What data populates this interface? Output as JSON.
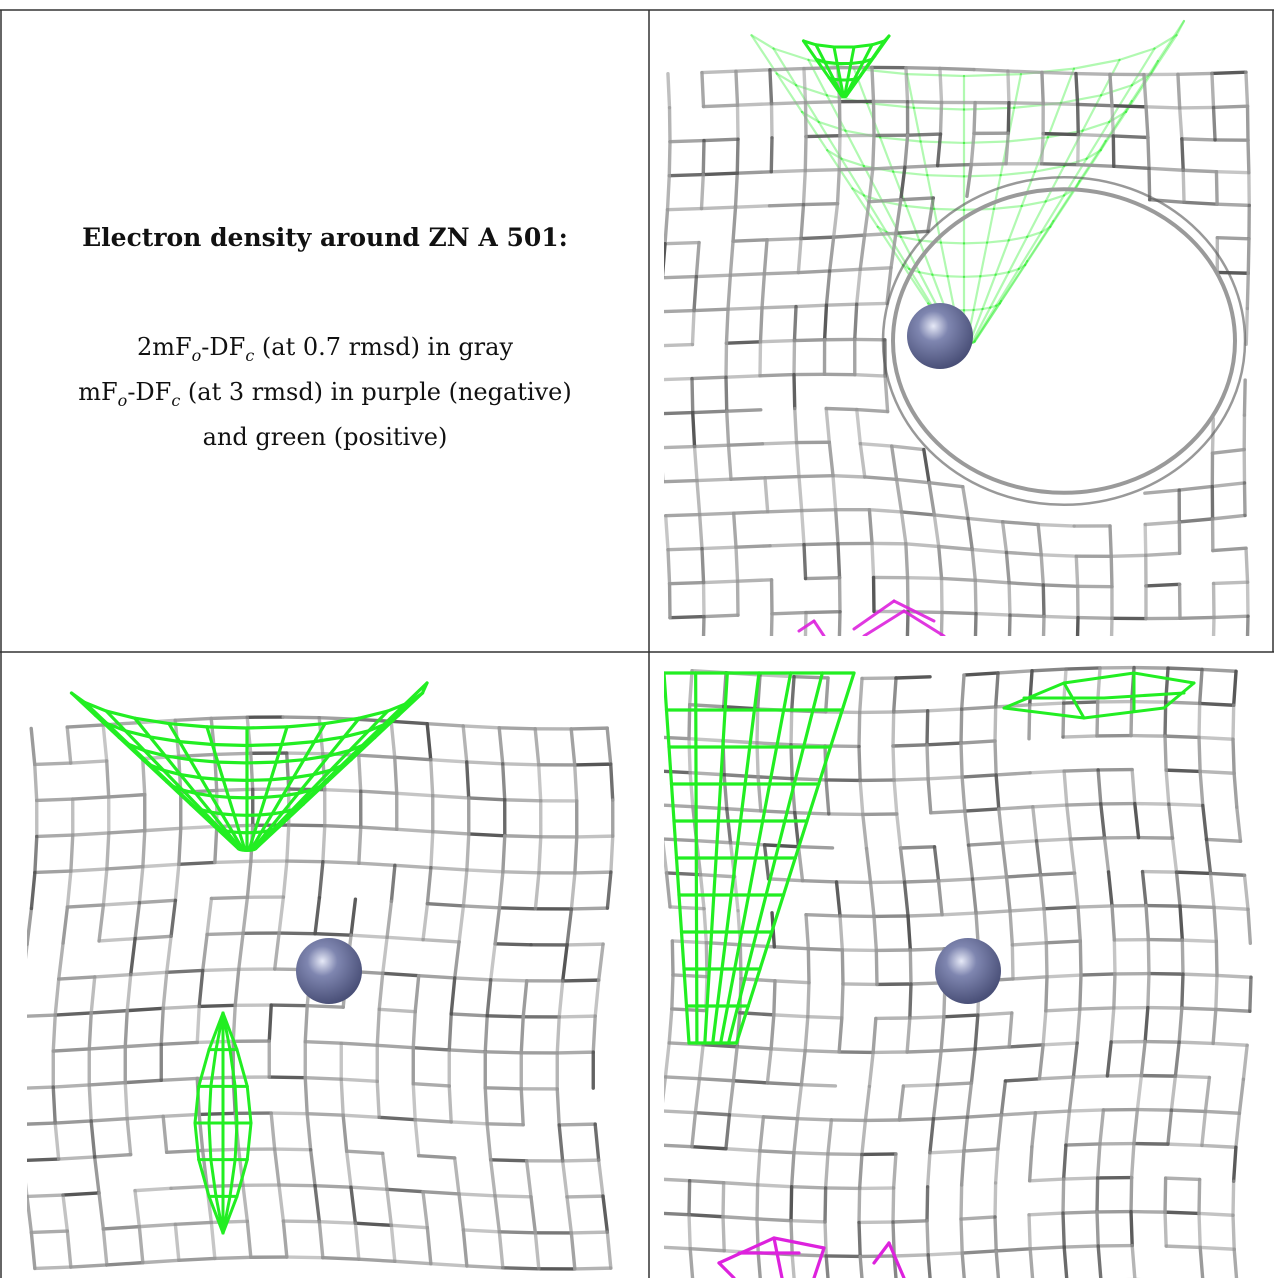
{
  "caption": {
    "title": "Electron density around ZN A 501:",
    "line1": {
      "pre": "2mF",
      "sub1": "o",
      "mid": "-DF",
      "sub2": "c",
      "post": " (at 0.7 rmsd) in gray"
    },
    "line2": {
      "pre": "mF",
      "sub1": "o",
      "mid": "-DF",
      "sub2": "c",
      "post": " (at 3 rmsd) in purple (negative)"
    },
    "line3": "and green (positive)"
  },
  "colors": {
    "density_gray": "#9a9a9a",
    "density_dark": "#555555",
    "positive_green": "#22ee22",
    "negative_purple": "#dd22dd",
    "zinc_atom": "#7f86b0",
    "border": "#333333"
  },
  "panels": [
    {
      "name": "view-top-right"
    },
    {
      "name": "view-bottom-left"
    },
    {
      "name": "view-bottom-right"
    }
  ]
}
